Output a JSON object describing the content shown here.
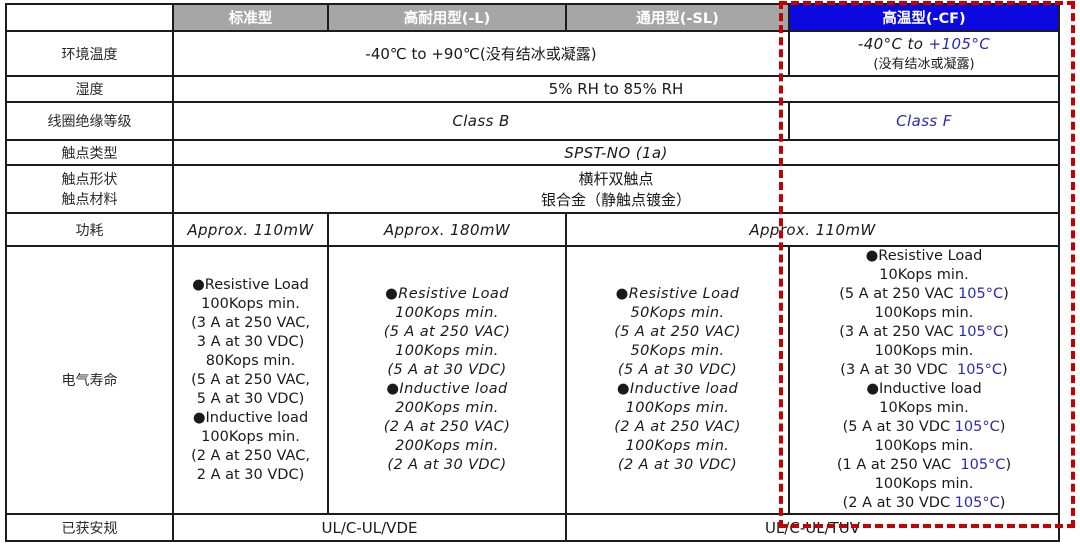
{
  "colors": {
    "header_gray_bg": "#a6a6a6",
    "header_blue_bg": "#0a0ae0",
    "header_text": "#ffffff",
    "blue_text": "#2a2ab5",
    "dashed_box_red": "#c40000"
  },
  "header": {
    "corner": "",
    "standard": "标准型",
    "high_durability": "高耐用型(-L)",
    "general": "通用型(-SL)",
    "high_temp": "高温型(-CF)"
  },
  "rows": {
    "ambient": {
      "label": "环境温度",
      "value_std": "-40℃ to +90℃(没有结冰或凝露)",
      "cf_range_prefix": "-40°C to ",
      "cf_range_highlight": "+105°C",
      "cf_note": "(没有结冰或凝露)"
    },
    "humidity": {
      "label": "湿度",
      "value": "5% RH to 85% RH"
    },
    "coil_insulation": {
      "label": "线圈绝缘等级",
      "value_std": "Class B",
      "value_cf": "Class F"
    },
    "contact_type": {
      "label": "触点类型",
      "value": "SPST-NO (1a)"
    },
    "contact_form_material": {
      "label_line1": "触点形状",
      "label_line2": "触点材料",
      "value_line1": "横杆双触点",
      "value_line2": "银合金（静触点镀金）"
    },
    "power": {
      "label": "功耗",
      "value_standard": "Approx. 110mW",
      "value_high_durability": "Approx. 180mW",
      "value_general_high_temp": "Approx. 110mW"
    },
    "electrical_life": {
      "label": "电气寿命",
      "standard_lines": [
        "●Resistive Load",
        "100Kops min.",
        "(3 A at 250 VAC,",
        "3 A at 30 VDC)",
        "80Kops min.",
        "(5 A at 250 VAC,",
        "5 A at 30 VDC)",
        "●Inductive load",
        "100Kops min.",
        "(2 A at 250 VAC,",
        "2 A at 30 VDC)"
      ],
      "high_durability_lines": [
        "●Resistive Load",
        "100Kops min.",
        "(5 A at 250 VAC)",
        "100Kops min.",
        "(5 A at 30 VDC)",
        "●Inductive load",
        "200Kops min.",
        "(2 A at 250 VAC)",
        "200Kops min.",
        "(2 A at 30 VDC)"
      ],
      "general_lines": [
        "●Resistive Load",
        "50Kops min.",
        "(5 A at 250 VAC)",
        "50Kops min.",
        "(5 A at 30 VDC)",
        "●Inductive load",
        "100Kops min.",
        "(2 A at 250 VAC)",
        "100Kops min.",
        "(2 A at 30 VDC)"
      ],
      "high_temp_lines": [
        "●Resistive Load",
        "10Kops min.",
        "(5 A at 250 VAC 105°C)",
        "100Kops min.",
        "(3 A at 250 VAC 105°C)",
        "100Kops min.",
        "(3 A at 30 VDC  105°C)",
        "●Inductive load",
        "10Kops min.",
        "(5 A at 30 VDC 105°C)",
        "100Kops min.",
        "(1 A at 250 VAC  105°C)",
        "100Kops min.",
        "(2 A at 30 VDC 105°C)"
      ],
      "high_temp_highlight": "105°C"
    },
    "safety": {
      "label": "已获安规",
      "value_standard_durability": "UL/C-UL/VDE",
      "value_general_high_temp": "UL/C-UL/TUV"
    }
  }
}
